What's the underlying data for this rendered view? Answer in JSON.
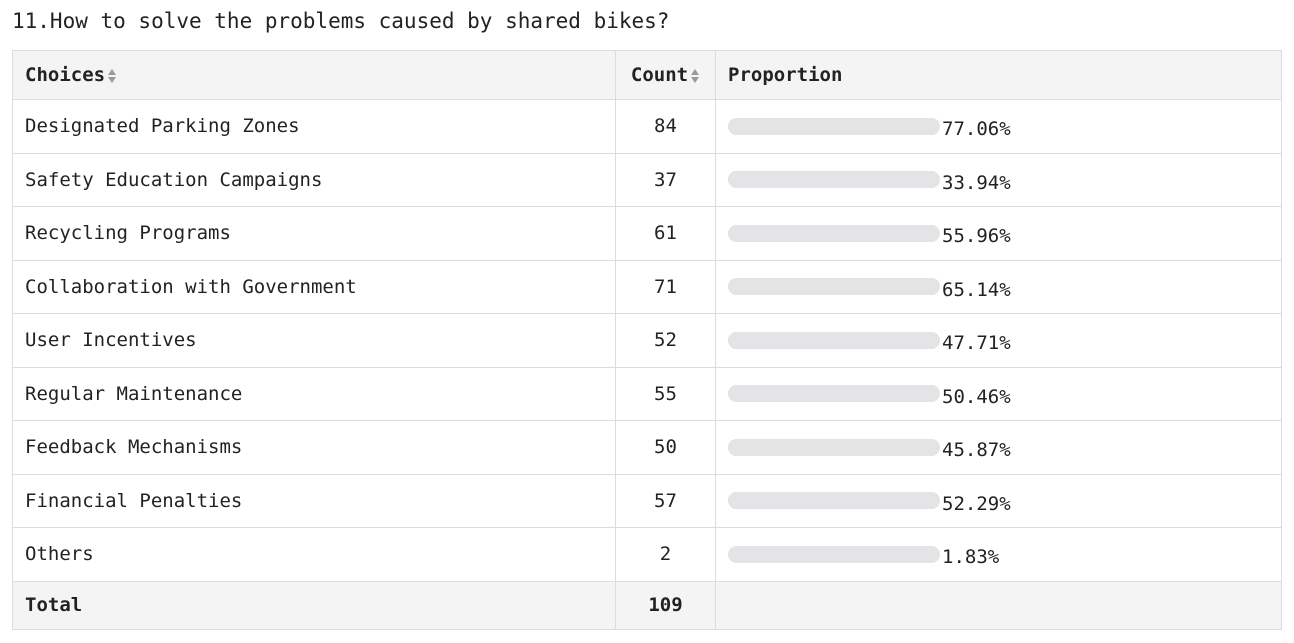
{
  "question": "11.How to solve the problems caused by shared bikes?",
  "headers": {
    "choices": "Choices",
    "count": "Count",
    "proportion": "Proportion"
  },
  "rows": [
    {
      "choice": "Designated Parking Zones",
      "count": "84",
      "proportion": "77.06%"
    },
    {
      "choice": "Safety Education Campaigns",
      "count": "37",
      "proportion": "33.94%"
    },
    {
      "choice": "Recycling Programs",
      "count": "61",
      "proportion": "55.96%"
    },
    {
      "choice": "Collaboration with Government",
      "count": "71",
      "proportion": "65.14%"
    },
    {
      "choice": "User Incentives",
      "count": "52",
      "proportion": "47.71%"
    },
    {
      "choice": "Regular Maintenance",
      "count": "55",
      "proportion": "50.46%"
    },
    {
      "choice": "Feedback Mechanisms",
      "count": "50",
      "proportion": "45.87%"
    },
    {
      "choice": "Financial Penalties",
      "count": "57",
      "proportion": "52.29%"
    },
    {
      "choice": "Others",
      "count": "2",
      "proportion": "1.83%"
    }
  ],
  "total": {
    "label": "Total",
    "count": "109"
  },
  "colors": {
    "bar_track": "#e4e4e6",
    "header_bg": "#f4f4f4",
    "border": "#dcdcdc"
  }
}
